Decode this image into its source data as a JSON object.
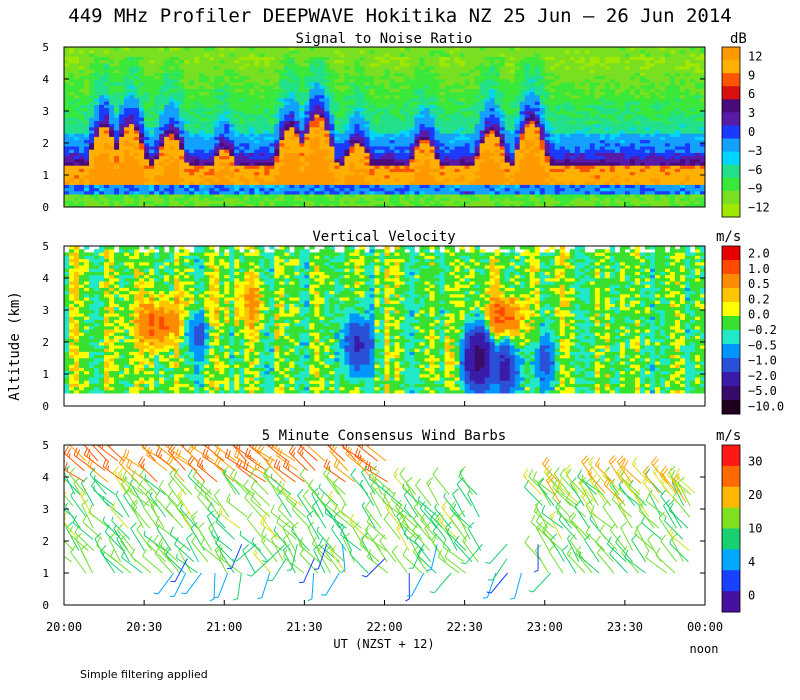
{
  "title": "449 MHz Profiler DEEPWAVE Hokitika NZ 25 Jun – 26 Jun 2014",
  "y_axis_label": "Altitude (km)",
  "x_axis_label": "UT  (NZST + 12)",
  "x_ticks": [
    "20:00",
    "20:30",
    "21:00",
    "21:30",
    "22:00",
    "22:30",
    "23:00",
    "23:30",
    "00:00"
  ],
  "x_end_note": "noon",
  "footer_note": "Simple filtering applied",
  "chart_data": [
    {
      "type": "heatmap",
      "title": "Signal to Noise Ratio",
      "colorbar_unit": "dB",
      "colorbar_ticks": [
        "12",
        "9",
        "6",
        "3",
        "0",
        "−3",
        "−6",
        "−9",
        "−12"
      ],
      "colorbar_colors": [
        "#ff9900",
        "#ffb000",
        "#ff5500",
        "#d81010",
        "#4a0a78",
        "#5a1aa8",
        "#1a3aff",
        "#14a0ff",
        "#00d5ff",
        "#22e08a",
        "#3ae83a",
        "#78e020",
        "#a0e800"
      ],
      "x_range": [
        "20:00",
        "00:00"
      ],
      "ylim": [
        0,
        5
      ],
      "y_ticks": [
        0,
        1,
        2,
        3,
        4,
        5
      ],
      "features": {
        "strong_echo_tops_km": [
          {
            "t": "20:15",
            "top": 2.5
          },
          {
            "t": "20:25",
            "top": 2.6
          },
          {
            "t": "20:40",
            "top": 2.3
          },
          {
            "t": "21:00",
            "top": 1.8
          },
          {
            "t": "21:25",
            "top": 2.5
          },
          {
            "t": "21:35",
            "top": 2.9
          },
          {
            "t": "21:50",
            "top": 2.0
          },
          {
            "t": "22:15",
            "top": 2.1
          },
          {
            "t": "22:40",
            "top": 2.4
          },
          {
            "t": "22:55",
            "top": 2.7
          },
          {
            "t": "23:20",
            "top": 1.3
          }
        ],
        "noise_floor_top_km": 4.7
      }
    },
    {
      "type": "heatmap",
      "title": "Vertical Velocity",
      "colorbar_unit": "m/s",
      "colorbar_ticks": [
        "2.0",
        "1.0",
        "0.5",
        "0.2",
        "0.0",
        "−0.2",
        "−0.5",
        "−1.0",
        "−2.0",
        "−5.0",
        "−10.0"
      ],
      "colorbar_colors": [
        "#e80000",
        "#ff4a00",
        "#ff8c00",
        "#ffc400",
        "#ffff00",
        "#38e030",
        "#20e8c8",
        "#0096ff",
        "#2a50d8",
        "#3a1aa8",
        "#3a0a6a",
        "#200020"
      ],
      "x_range": [
        "20:00",
        "00:00"
      ],
      "ylim": [
        0,
        5
      ],
      "y_ticks": [
        0,
        1,
        2,
        3,
        4,
        5
      ],
      "features": {
        "updraft_regions": [
          {
            "t": "20:35",
            "z": 2.6,
            "w": 1.0
          },
          {
            "t": "20:50",
            "z": 3.0,
            "w": 0.5
          },
          {
            "t": "21:10",
            "z": 3.2,
            "w": 0.5
          },
          {
            "t": "22:45",
            "z": 2.7,
            "w": 1.0
          },
          {
            "t": "22:25",
            "z": 1.6,
            "w": 0.2
          }
        ],
        "downdraft_regions": [
          {
            "t": "20:50",
            "z": 2.4,
            "w": -1.0
          },
          {
            "t": "21:50",
            "z": 1.9,
            "w": -2.0
          },
          {
            "t": "22:35",
            "z": 1.5,
            "w": -5.0
          },
          {
            "t": "22:45",
            "z": 1.2,
            "w": -2.0
          },
          {
            "t": "23:00",
            "z": 1.4,
            "w": -1.0
          }
        ]
      }
    },
    {
      "type": "scatter",
      "title": "5 Minute Consensus Wind Barbs",
      "colorbar_unit": "m/s",
      "colorbar_ticks": [
        "30",
        "20",
        "10",
        "4",
        "0"
      ],
      "colorbar_colors": [
        "#ff1818",
        "#ff6a00",
        "#ffb800",
        "#80e020",
        "#18d070",
        "#00a8ff",
        "#1840ff",
        "#4810a0"
      ],
      "x_range": [
        "20:00",
        "00:00"
      ],
      "ylim": [
        0,
        5
      ],
      "y_ticks": [
        0,
        1,
        2,
        3,
        4,
        5
      ],
      "features": {
        "upper_layer": {
          "z_range": [
            3.8,
            4.5
          ],
          "t_range": [
            "20:00",
            "22:00"
          ],
          "speed_ms": 22,
          "direction_deg": 310
        },
        "mid_layer": {
          "z_range": [
            1.0,
            3.6
          ],
          "t_range": [
            "20:00",
            "23:55"
          ],
          "speed_ms": 10,
          "direction_deg": 320
        },
        "low_layer_slow": {
          "z_range": [
            1.0,
            2.3
          ],
          "t_range": [
            "20:40",
            "23:10"
          ],
          "speed_ms": 5,
          "direction_deg": 200
        }
      }
    }
  ]
}
